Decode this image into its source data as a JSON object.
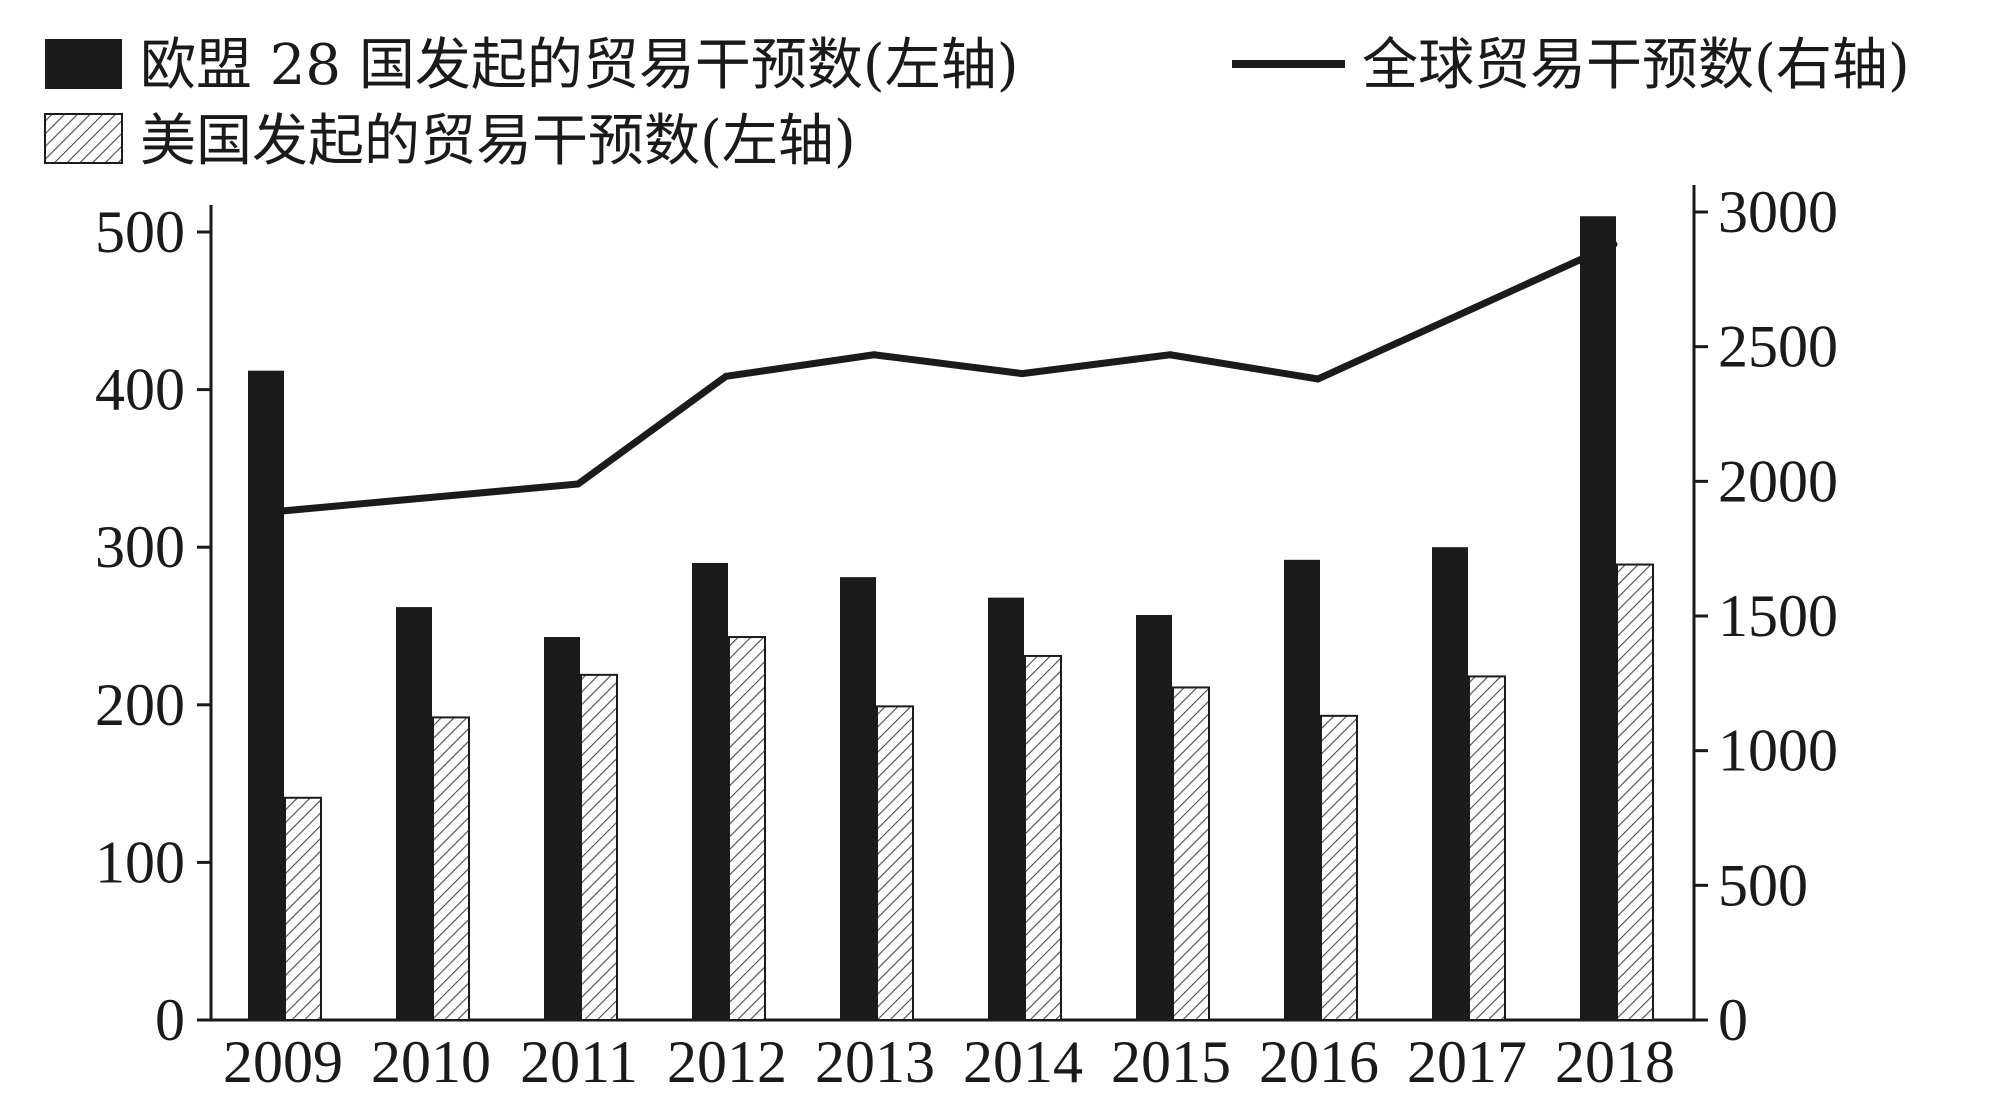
{
  "chart_data": {
    "type": "bar",
    "categories": [
      "2009",
      "2010",
      "2011",
      "2012",
      "2013",
      "2014",
      "2015",
      "2016",
      "2017",
      "2018"
    ],
    "series": [
      {
        "name": "欧盟 28 国发起的贸易干预数(左轴)",
        "axis": "left",
        "type": "bar",
        "fill": "solid",
        "values": [
          412,
          262,
          243,
          290,
          281,
          268,
          257,
          292,
          300,
          510
        ]
      },
      {
        "name": "美国发起的贸易干预数(左轴)",
        "axis": "left",
        "type": "bar",
        "fill": "hatched",
        "values": [
          141,
          192,
          219,
          243,
          199,
          231,
          211,
          193,
          218,
          289
        ]
      },
      {
        "name": "全球贸易干预数(右轴)",
        "axis": "right",
        "type": "line",
        "values": [
          1890,
          1940,
          1990,
          2390,
          2470,
          2400,
          2470,
          2380,
          2630,
          2880
        ]
      }
    ],
    "left_axis": {
      "range": [
        0,
        520
      ],
      "ticks": [
        0,
        100,
        200,
        300,
        400,
        500
      ],
      "tick_labels": [
        "0",
        "100",
        "200",
        "300",
        "400",
        "500"
      ]
    },
    "right_axis": {
      "range": [
        0,
        3120
      ],
      "ticks": [
        0,
        500,
        1000,
        1500,
        2000,
        2500,
        3000
      ],
      "tick_labels": [
        "0",
        "500",
        "1000",
        "1500",
        "2000",
        "2500",
        "3000"
      ]
    },
    "title": "",
    "xlabel": "",
    "ylabel": "",
    "grid": false,
    "legend_position": "top"
  },
  "colors": {
    "ink": "#1b1b1b",
    "background": "#ffffff"
  }
}
